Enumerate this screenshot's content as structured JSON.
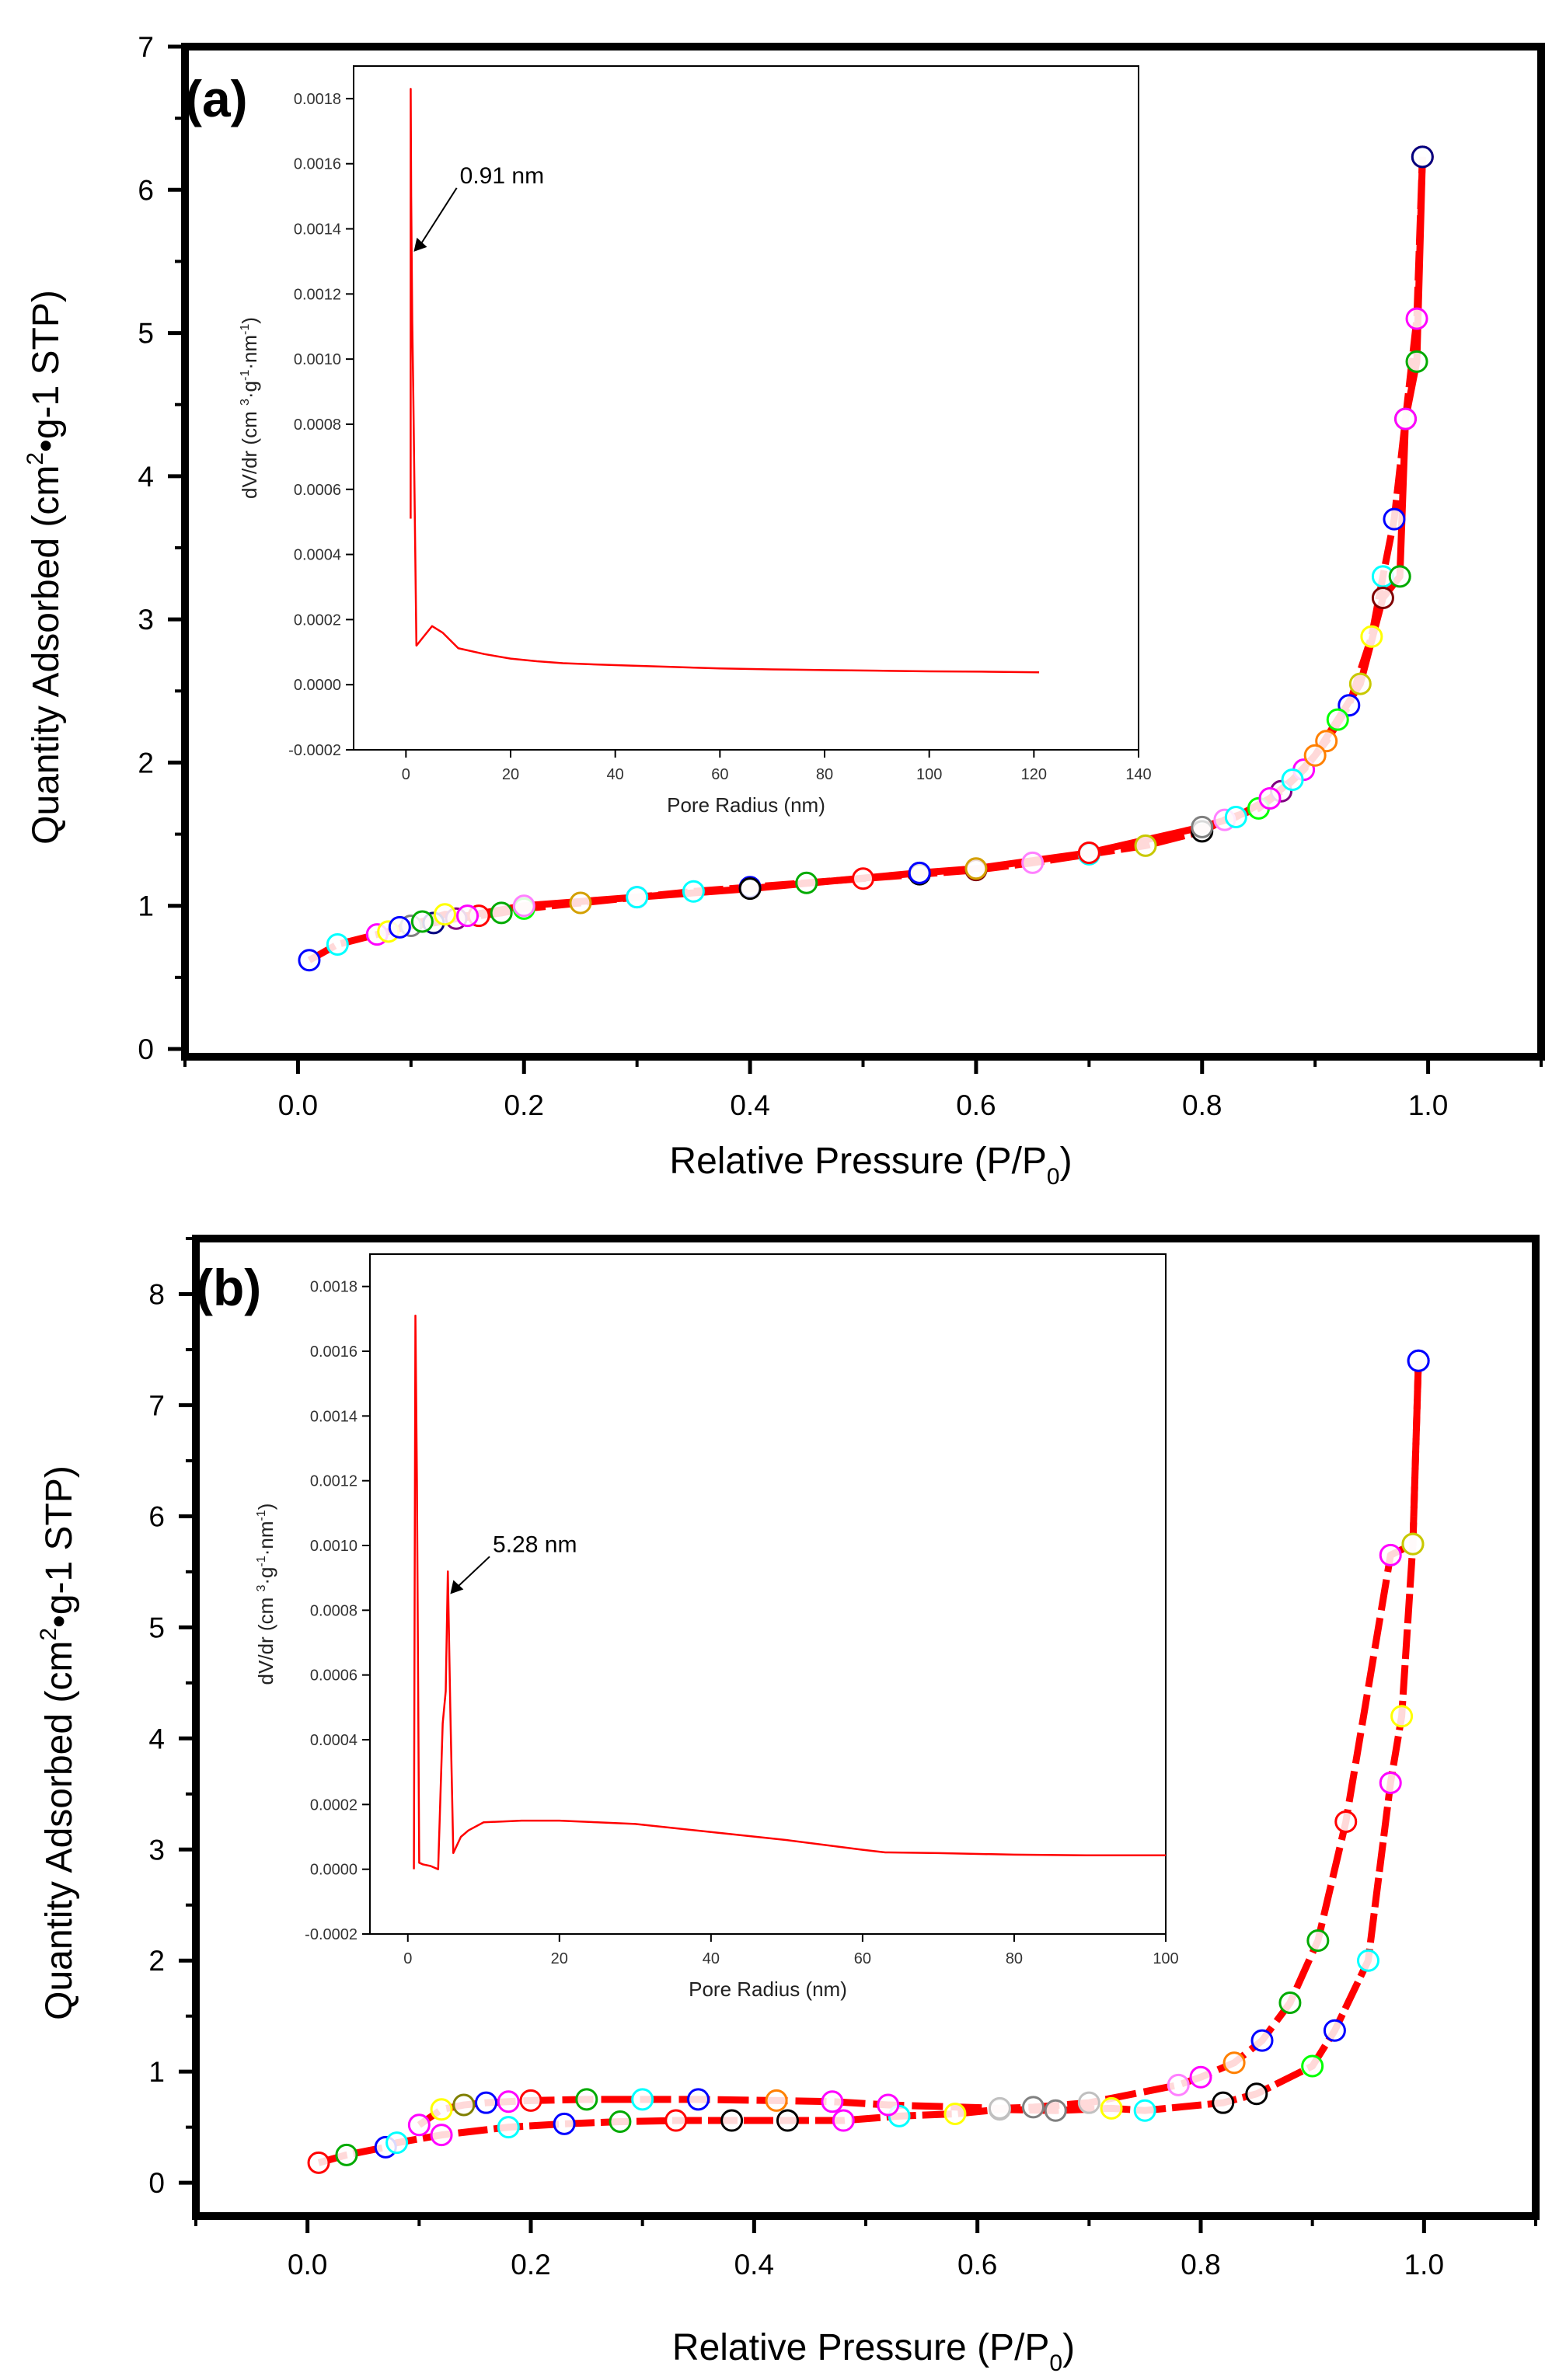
{
  "chart_data": [
    {
      "type": "scatter",
      "panel_label": "(a)",
      "title": "",
      "xlabel": "Relative Pressure (P/P",
      "xlabel_sub": "0",
      "xlabel_close": ")",
      "ylabel_pre": "Quantity Adsorbed (cm",
      "ylabel_sup": "2",
      "ylabel_post": "•g-1 STP)",
      "xlim": [
        -0.1,
        1.1
      ],
      "ylim": [
        0,
        7
      ],
      "xticks": [
        "0.0",
        "0.2",
        "0.4",
        "0.6",
        "0.8",
        "1.0"
      ],
      "xtick_values": [
        0,
        0.2,
        0.4,
        0.6,
        0.8,
        1.0
      ],
      "yticks": [
        "0",
        "1",
        "2",
        "3",
        "4",
        "5",
        "6",
        "7"
      ],
      "ytick_values": [
        0,
        1,
        2,
        3,
        4,
        5,
        6,
        7
      ],
      "line_color": "#ff0000",
      "series": [
        {
          "name": "adsorption",
          "x": [
            0.01,
            0.035,
            0.07,
            0.08,
            0.1,
            0.12,
            0.14,
            0.16,
            0.18,
            0.2,
            0.25,
            0.3,
            0.35,
            0.4,
            0.45,
            0.5,
            0.55,
            0.6,
            0.65,
            0.7,
            0.75,
            0.8,
            0.82,
            0.85,
            0.87,
            0.89,
            0.91,
            0.93,
            0.95,
            0.96,
            0.97,
            0.98,
            0.99,
            0.995
          ],
          "y": [
            0.62,
            0.73,
            0.8,
            0.82,
            0.86,
            0.88,
            0.91,
            0.93,
            0.95,
            0.98,
            1.02,
            1.06,
            1.1,
            1.13,
            1.16,
            1.19,
            1.22,
            1.25,
            1.3,
            1.36,
            1.42,
            1.52,
            1.6,
            1.68,
            1.8,
            1.95,
            2.15,
            2.4,
            2.88,
            3.3,
            3.7,
            4.4,
            5.1,
            6.23
          ]
        },
        {
          "name": "desorption",
          "x": [
            0.995,
            0.99,
            0.98,
            0.975,
            0.96,
            0.94,
            0.92,
            0.9,
            0.88,
            0.86,
            0.83,
            0.8,
            0.7,
            0.6,
            0.55,
            0.4,
            0.3,
            0.2,
            0.15,
            0.13,
            0.11,
            0.09
          ],
          "y": [
            6.23,
            4.8,
            4.4,
            3.3,
            3.15,
            2.55,
            2.3,
            2.05,
            1.88,
            1.75,
            1.62,
            1.55,
            1.37,
            1.26,
            1.23,
            1.12,
            1.06,
            1.0,
            0.93,
            0.94,
            0.89,
            0.85
          ]
        }
      ],
      "marker_colors": [
        "#0000ff",
        "#00ffff",
        "#ff00ff",
        "#ffff00",
        "#808080",
        "#000080",
        "#800080",
        "#ff0000",
        "#00aa00",
        "#00ff00",
        "#d4a000",
        "#ff00ff",
        "#00ffff",
        "#0000ff",
        "#00aa00",
        "#ff0000",
        "#000000",
        "#800000",
        "#ff80ff",
        "#00ffff",
        "#c8c800",
        "#000000",
        "#ff80ff",
        "#00ff00",
        "#800080",
        "#ff00ff",
        "#ff8000",
        "#0000ff",
        "#ffff00",
        "#00ffff",
        "#0000ff",
        "#00aa00",
        "#ff00ff",
        "#ff0000"
      ],
      "inset": {
        "type": "line",
        "xlabel": "Pore Radius (nm)",
        "ylabel_text": "dV/dr (cm 3·g-1·nm-1)",
        "ylabel_parts": [
          "dV/dr (cm ",
          "3",
          "·g",
          "-1",
          "·nm",
          "-1",
          ")"
        ],
        "xlim": [
          -10,
          140
        ],
        "ylim": [
          -0.0002,
          0.0019
        ],
        "xticks": [
          "0",
          "20",
          "40",
          "60",
          "80",
          "100",
          "120",
          "140"
        ],
        "xtick_values": [
          0,
          20,
          40,
          60,
          80,
          100,
          120,
          140
        ],
        "yticks": [
          "-0.0002",
          "0.0000",
          "0.0002",
          "0.0004",
          "0.0006",
          "0.0008",
          "0.0010",
          "0.0012",
          "0.0014",
          "0.0016",
          "0.0018"
        ],
        "ytick_values": [
          -0.0002,
          0.0,
          0.0002,
          0.0004,
          0.0006,
          0.0008,
          0.001,
          0.0012,
          0.0014,
          0.0016,
          0.0018
        ],
        "x": [
          0.9,
          0.91,
          1.0,
          1.1,
          1.2,
          1.4,
          2.0,
          3.0,
          5.0,
          7.0,
          10,
          15,
          20,
          25,
          30,
          40,
          50,
          60,
          70,
          80,
          90,
          100,
          110,
          121
        ],
        "y": [
          0.00051,
          0.00183,
          0.0015,
          0.00131,
          0.00112,
          0.0009,
          0.00012,
          0.00014,
          0.00018,
          0.00016,
          0.000112,
          9.4e-05,
          8e-05,
          7.2e-05,
          6.6e-05,
          6e-05,
          5.5e-05,
          5e-05,
          4.7e-05,
          4.5e-05,
          4.3e-05,
          4.1e-05,
          4e-05,
          3.8e-05
        ],
        "annotation": "0.91 nm",
        "annotation_xy": [
          1.5,
          0.00133
        ],
        "annotation_text_xy": [
          10,
          0.00154
        ],
        "line_color": "#ff0000"
      }
    },
    {
      "type": "scatter",
      "panel_label": "(b)",
      "title": "",
      "xlabel": "Relative Pressure (P/P",
      "xlabel_sub": "0",
      "xlabel_close": ")",
      "ylabel_pre": "Quantity Adsorbed (cm",
      "ylabel_sup": "2",
      "ylabel_post": "•g-1 STP)",
      "xlim": [
        -0.1,
        1.1
      ],
      "ylim": [
        -0.3,
        8.5
      ],
      "xticks": [
        "0.0",
        "0.2",
        "0.4",
        "0.6",
        "0.8",
        "1.0"
      ],
      "xtick_values": [
        0,
        0.2,
        0.4,
        0.6,
        0.8,
        1.0
      ],
      "yticks": [
        "0",
        "1",
        "2",
        "3",
        "4",
        "5",
        "6",
        "7",
        "8"
      ],
      "ytick_values": [
        0,
        1,
        2,
        3,
        4,
        5,
        6,
        7,
        8
      ],
      "line_color": "#ff0000",
      "series": [
        {
          "name": "adsorption",
          "x": [
            0.01,
            0.035,
            0.07,
            0.08,
            0.12,
            0.18,
            0.23,
            0.28,
            0.33,
            0.38,
            0.43,
            0.48,
            0.53,
            0.58,
            0.62,
            0.67,
            0.72,
            0.75,
            0.82,
            0.85,
            0.9,
            0.92,
            0.95,
            0.97,
            0.98,
            0.99,
            0.995
          ],
          "y": [
            0.18,
            0.25,
            0.32,
            0.36,
            0.43,
            0.5,
            0.53,
            0.55,
            0.56,
            0.56,
            0.56,
            0.56,
            0.6,
            0.62,
            0.66,
            0.65,
            0.67,
            0.65,
            0.72,
            0.8,
            1.05,
            1.37,
            2.0,
            3.6,
            4.2,
            5.75,
            7.4
          ]
        },
        {
          "name": "desorption",
          "x": [
            0.995,
            0.99,
            0.97,
            0.93,
            0.905,
            0.88,
            0.855,
            0.83,
            0.8,
            0.78,
            0.7,
            0.65,
            0.62,
            0.52,
            0.47,
            0.42,
            0.35,
            0.3,
            0.25,
            0.2,
            0.18,
            0.16,
            0.14,
            0.12,
            0.1
          ],
          "y": [
            7.4,
            5.75,
            5.65,
            3.25,
            2.18,
            1.62,
            1.28,
            1.08,
            0.95,
            0.88,
            0.72,
            0.68,
            0.67,
            0.7,
            0.73,
            0.74,
            0.75,
            0.75,
            0.75,
            0.74,
            0.73,
            0.72,
            0.7,
            0.66,
            0.52
          ]
        }
      ],
      "marker_colors": [
        "#ff0000",
        "#00aa00",
        "#0000ff",
        "#00ffff",
        "#ff00ff",
        "#00ffff",
        "#0000ff",
        "#00aa00",
        "#ff0000",
        "#000000",
        "#000000",
        "#ff00ff",
        "#00ffff",
        "#ffff00",
        "#c0c0c0",
        "#808080",
        "#ffff00",
        "#00ffff",
        "#000000",
        "#000000",
        "#00ff00",
        "#0000ff",
        "#00ffff",
        "#ff00ff",
        "#ffff00",
        "#c8c800",
        "#0000ff"
      ],
      "marker_colors_desorption": [
        "#0000ff",
        "#c8c800",
        "#ff00ff",
        "#ff0000",
        "#00aa00",
        "#00aa00",
        "#0000ff",
        "#ff8000",
        "#ff00ff",
        "#ff80ff",
        "#c0c0c0",
        "#808080",
        "#c0c0c0",
        "#ff00ff",
        "#ff00ff",
        "#ff8000",
        "#0000ff",
        "#00ffff",
        "#00aa00",
        "#ff0000",
        "#ff00ff",
        "#0000ff",
        "#808000",
        "#ffff00",
        "#ff00ff"
      ],
      "inset": {
        "type": "line",
        "xlabel": "Pore Radius (nm)",
        "ylabel_text": "dV/dr (cm 3·g-1·nm-1)",
        "ylabel_parts": [
          "dV/dr (cm ",
          "3",
          "·g",
          "-1",
          "·nm",
          "-1",
          ")"
        ],
        "xlim": [
          -5,
          100
        ],
        "ylim": [
          -0.0002,
          0.0019
        ],
        "xticks": [
          "0",
          "20",
          "40",
          "60",
          "80",
          "100"
        ],
        "xtick_values": [
          0,
          20,
          40,
          60,
          80,
          100
        ],
        "yticks": [
          "-0.0002",
          "0.0000",
          "0.0002",
          "0.0004",
          "0.0006",
          "0.0008",
          "0.0010",
          "0.0012",
          "0.0014",
          "0.0016",
          "0.0018"
        ],
        "ytick_values": [
          -0.0002,
          0.0,
          0.0002,
          0.0004,
          0.0006,
          0.0008,
          0.001,
          0.0012,
          0.0014,
          0.0016,
          0.0018
        ],
        "x": [
          0.8,
          1.0,
          1.2,
          1.5,
          2,
          3,
          4,
          4.6,
          5.0,
          5.28,
          5.6,
          6.0,
          7,
          8,
          10,
          15,
          20,
          25,
          30,
          40,
          50,
          60,
          63,
          70,
          80,
          90,
          100
        ],
        "y": [
          0.0,
          0.00171,
          0.0012,
          2e-05,
          1.5e-05,
          1e-05,
          0.0,
          0.00045,
          0.00055,
          0.00092,
          0.0005,
          5e-05,
          0.0001,
          0.00012,
          0.000145,
          0.00015,
          0.00015,
          0.000145,
          0.00014,
          0.000115,
          9e-05,
          6e-05,
          5.2e-05,
          5e-05,
          4.5e-05,
          4.3e-05,
          4.3e-05
        ],
        "annotation": "5.28 nm",
        "annotation_xy": [
          5.6,
          0.00085
        ],
        "annotation_text_xy": [
          11,
          0.00098
        ],
        "line_color": "#ff0000"
      }
    }
  ]
}
